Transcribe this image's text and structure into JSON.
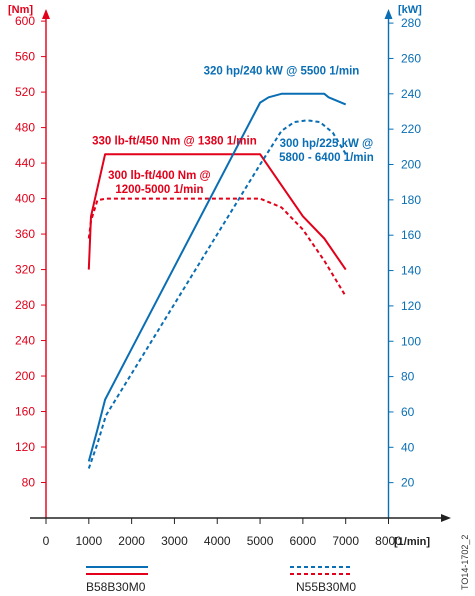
{
  "chart_data": {
    "type": "line",
    "colors": {
      "torque": "#e2001a",
      "power": "#0a6eb4",
      "axis": "#222222"
    },
    "x_axis": {
      "range": [
        0,
        8000
      ],
      "ticks": [
        0,
        1000,
        2000,
        3000,
        4000,
        5000,
        6000,
        7000,
        8000
      ],
      "unit_label": "[1/min]"
    },
    "y_left": {
      "unit_label": "[Nm]",
      "range": [
        40,
        600
      ],
      "ticks": [
        80,
        120,
        160,
        200,
        240,
        280,
        320,
        360,
        400,
        440,
        480,
        520,
        560,
        600
      ]
    },
    "y_right": {
      "unit_label": "[kW]",
      "range": [
        0,
        280
      ],
      "ticks": [
        20,
        40,
        60,
        80,
        100,
        120,
        140,
        160,
        180,
        200,
        220,
        240,
        260,
        280
      ]
    },
    "series": [
      {
        "name": "B58B30M0",
        "quantity": "torque",
        "axis": "left",
        "color": "#e2001a",
        "style": "solid",
        "x": [
          1000,
          1050,
          1380,
          5000,
          5500,
          6000,
          6500,
          7000
        ],
        "y": [
          320,
          380,
          450,
          450,
          415,
          380,
          355,
          320
        ]
      },
      {
        "name": "N55B30M0",
        "quantity": "torque",
        "axis": "left",
        "color": "#e2001a",
        "style": "dashed",
        "x": [
          1000,
          1050,
          1200,
          1400,
          5000,
          5500,
          6000,
          6500,
          7000
        ],
        "y": [
          355,
          375,
          398,
          400,
          400,
          390,
          365,
          330,
          290
        ]
      },
      {
        "name": "B58B30M0",
        "quantity": "power",
        "axis": "right",
        "color": "#0a6eb4",
        "style": "solid",
        "x": [
          1000,
          1200,
          1380,
          5000,
          5200,
          5500,
          6500,
          6600,
          7000
        ],
        "y": [
          32,
          50,
          67,
          235,
          238,
          240,
          240,
          238,
          234
        ]
      },
      {
        "name": "N55B30M0",
        "quantity": "power",
        "axis": "right",
        "color": "#0a6eb4",
        "style": "dashed",
        "x": [
          1000,
          1200,
          1400,
          5000,
          5500,
          5800,
          6100,
          6400,
          6700,
          7000
        ],
        "y": [
          28,
          42,
          58,
          200,
          219,
          224,
          225,
          224,
          218,
          206
        ]
      }
    ],
    "annotations": [
      {
        "lines": [
          "320 hp/240 kW @ 5500 1/min"
        ],
        "color": "#0a6eb4",
        "x": 5500,
        "y_kw": 251
      },
      {
        "lines": [
          "330 lb-ft/450 Nm @ 1380 1/min"
        ],
        "color": "#e2001a",
        "x": 3000,
        "y_nm": 461
      },
      {
        "lines": [
          "300 lb-ft/400 Nm @",
          "1200-5000 1/min"
        ],
        "color": "#e2001a",
        "x": 2650,
        "y_nm": 422
      },
      {
        "lines": [
          "300 hp/225 kW @",
          "5800 - 6400 1/min"
        ],
        "color": "#0a6eb4",
        "x": 6550,
        "y_kw": 210
      }
    ],
    "legend": {
      "placement": "bottom",
      "entries": [
        {
          "label": "B58B30M0",
          "style": "solid"
        },
        {
          "label": "N55B30M0",
          "style": "dashed"
        }
      ]
    },
    "grid": false
  },
  "doc_id": "TO14-1702_2"
}
